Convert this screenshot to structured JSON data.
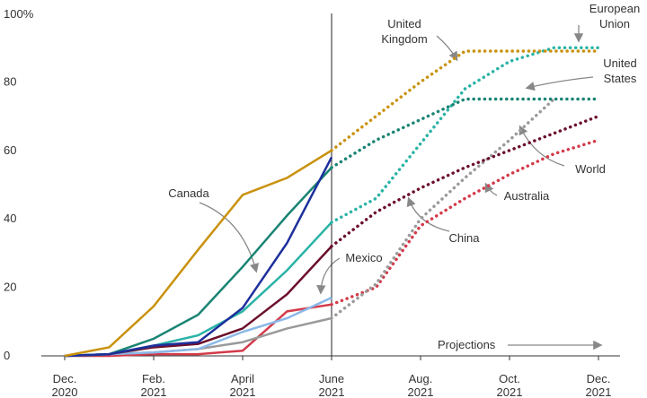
{
  "chart_data": {
    "type": "line",
    "categories": [
      [
        "Dec.",
        "2020"
      ],
      null,
      [
        "Feb.",
        "2021"
      ],
      null,
      [
        "April",
        "2021"
      ],
      null,
      [
        "June",
        "2021"
      ],
      null,
      [
        "Aug.",
        "2021"
      ],
      null,
      [
        "Oct.",
        "2021"
      ],
      null,
      [
        "Dec.",
        "2021"
      ]
    ],
    "ylim": [
      0,
      100
    ],
    "yticks": [
      0,
      20,
      40,
      60,
      80,
      {
        "value": 100,
        "label": "100%"
      }
    ],
    "annotation": "Projections",
    "series": [
      {
        "name": "United Kingdom",
        "color": "#c9920e",
        "values": [
          0,
          2.5,
          14.5,
          31,
          47,
          52,
          60,
          null,
          null,
          null,
          null,
          null,
          null
        ],
        "projected": [
          null,
          null,
          null,
          null,
          null,
          null,
          60,
          70,
          80,
          89,
          89,
          89,
          89
        ]
      },
      {
        "name": "European Union",
        "color": "#2ab3a6",
        "values": [
          0,
          0.5,
          3,
          6,
          13,
          25,
          39,
          null,
          null,
          null,
          null,
          null,
          null
        ],
        "projected": [
          null,
          null,
          null,
          null,
          null,
          null,
          39,
          46,
          62,
          78,
          86,
          90,
          90
        ]
      },
      {
        "name": "United States",
        "color": "#1a8474",
        "values": [
          0,
          0.5,
          5,
          12,
          26,
          41,
          55,
          null,
          null,
          null,
          null,
          null,
          null
        ],
        "projected": [
          null,
          null,
          null,
          null,
          null,
          null,
          55,
          63,
          69,
          75,
          75,
          75,
          75
        ]
      },
      {
        "name": "World",
        "color": "#9a9a9a",
        "values": [
          0,
          0.5,
          1,
          2,
          4,
          8,
          11,
          null,
          null,
          null,
          null,
          null,
          null
        ],
        "projected": [
          null,
          null,
          null,
          null,
          null,
          null,
          11,
          21,
          40,
          52,
          63,
          75,
          null
        ]
      },
      {
        "name": "Australia",
        "color": "#d33a4a",
        "values": [
          0,
          0,
          0.5,
          0.5,
          1.5,
          13,
          15,
          null,
          null,
          null,
          null,
          null,
          null
        ],
        "projected": [
          null,
          null,
          null,
          null,
          null,
          null,
          15,
          20,
          38,
          46,
          53,
          59,
          63
        ]
      },
      {
        "name": "China",
        "color": "#6b0f2b",
        "values": [
          0,
          0.5,
          2.5,
          3.5,
          8,
          18,
          32,
          null,
          null,
          null,
          null,
          null,
          null
        ],
        "projected": [
          null,
          null,
          null,
          null,
          null,
          null,
          32,
          42,
          49,
          55,
          60,
          65,
          70
        ]
      },
      {
        "name": "Canada",
        "color": "#1d2f9c",
        "values": [
          0,
          0.5,
          3,
          4,
          14,
          33,
          58,
          null,
          null,
          null,
          null,
          null,
          null
        ],
        "projected": [
          null,
          null,
          null,
          null,
          null,
          null,
          null,
          null,
          null,
          null,
          null,
          null,
          null
        ]
      },
      {
        "name": "Mexico",
        "color": "#8bb8e8",
        "values": [
          0,
          0.5,
          1,
          2,
          7,
          11,
          17,
          null,
          null,
          null,
          null,
          null,
          null
        ],
        "projected": [
          null,
          null,
          null,
          null,
          null,
          null,
          null,
          null,
          null,
          null,
          null,
          null,
          null
        ]
      }
    ]
  }
}
